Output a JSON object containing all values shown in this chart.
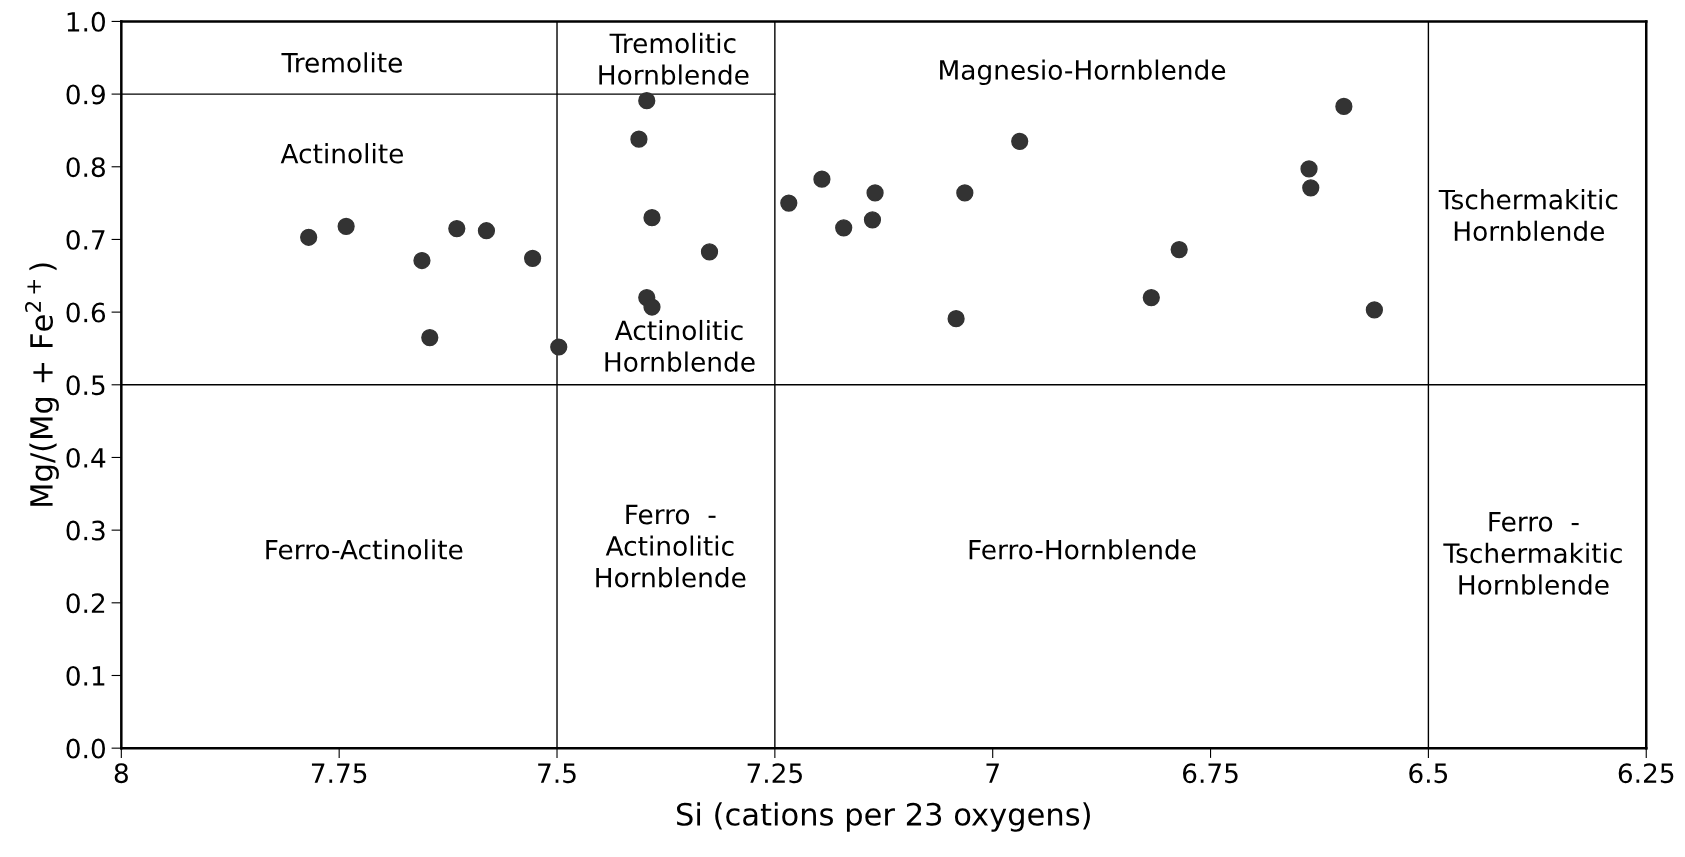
{
  "chart_data": {
    "type": "scatter",
    "xlabel": "Si (cations per 23 oxygens)",
    "ylabel": "Mg/(Mg + Fe$^{2+}$)",
    "xlim": [
      8,
      6.25
    ],
    "xticks": [
      8,
      7.75,
      7.5,
      7.25,
      7,
      6.75,
      6.5,
      6.25
    ],
    "ylim": [
      0,
      1
    ],
    "yticks": [
      {
        "value": 0,
        "label": "0.0"
      },
      {
        "value": 0.1,
        "label": "0.1"
      },
      {
        "value": 0.2,
        "label": "0.2"
      },
      {
        "value": 0.3,
        "label": "0.3"
      },
      {
        "value": 0.4,
        "label": "0.4"
      },
      {
        "value": 0.5,
        "label": "0.5"
      },
      {
        "value": 0.6,
        "label": "0.6"
      },
      {
        "value": 0.7,
        "label": "0.7"
      },
      {
        "value": 0.8,
        "label": "0.8"
      },
      {
        "value": 0.9,
        "label": "0.9"
      },
      {
        "value": 1,
        "label": "1.0"
      }
    ],
    "grid": false,
    "legend": false,
    "marker": "circle",
    "series": [
      {
        "color": "#333333",
        "x": [
          7.785,
          7.742,
          7.655,
          7.646,
          7.615,
          7.581,
          7.528,
          7.498,
          7.397,
          7.406,
          7.391,
          7.325,
          7.397,
          7.391,
          7.234,
          7.196,
          7.171,
          7.135,
          7.138,
          7.032,
          7.042,
          6.969,
          6.786,
          6.818,
          6.637,
          6.635,
          6.597,
          6.562
        ],
        "values": [
          0.703,
          0.718,
          0.671,
          0.565,
          0.715,
          0.712,
          0.674,
          0.552,
          0.891,
          0.838,
          0.73,
          0.683,
          0.62,
          0.607,
          0.75,
          0.783,
          0.716,
          0.764,
          0.727,
          0.764,
          0.591,
          0.835,
          0.686,
          0.62,
          0.797,
          0.771,
          0.883,
          0.603
        ]
      },
      {
        "type": "line",
        "marker": "none",
        "color": "#000000",
        "x": [
          8,
          7.25
        ],
        "values": [
          0.9,
          0.9
        ]
      }
    ],
    "ref_lines": [
      {
        "axis": "y",
        "value": 0.5,
        "color": "#000000"
      },
      {
        "axis": "x",
        "value": 7.5,
        "color": "#000000"
      },
      {
        "axis": "x",
        "value": 7.25,
        "color": "#000000"
      },
      {
        "axis": "x",
        "value": 6.5,
        "color": "#000000"
      }
    ],
    "annotations": [
      "Tremolite",
      "Actinolite",
      "Ferro-Actinolite",
      "Tremolitic\nHornblende",
      "Magnesio-Hornblende",
      "Actinolitic\nHornblende",
      "Ferro  -\nActinolitic\nHornblende",
      "Ferro-Hornblende",
      "Tschermakitic\nHornblende",
      "Ferro  -\nTschermakitic\nHornblende"
    ]
  }
}
